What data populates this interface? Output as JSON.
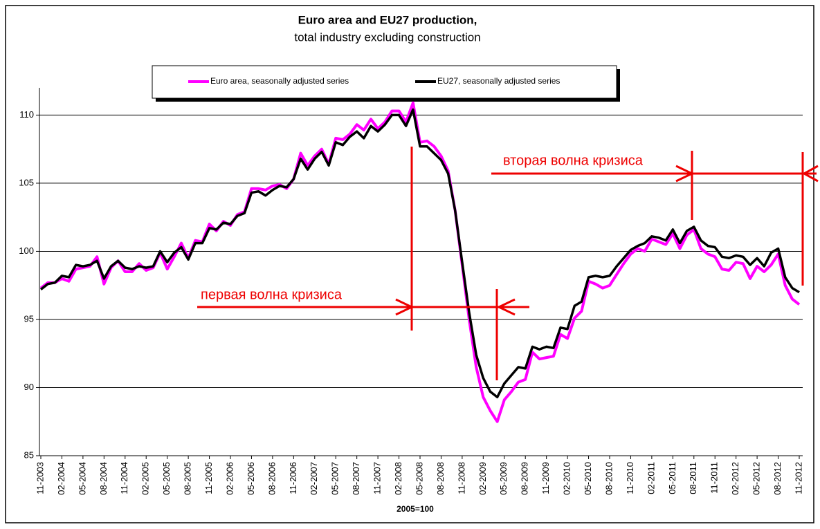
{
  "chart_data": {
    "type": "line",
    "title": "Euro area and EU27 production,",
    "subtitle": "total industry excluding construction",
    "x_label": "2005=100",
    "annotations": [
      "первая волна кризиса",
      "вторая волна кризиса"
    ],
    "categories": [
      "11-2003",
      null,
      null,
      "02-2004",
      null,
      null,
      "05-2004",
      null,
      null,
      "08-2004",
      null,
      null,
      "11-2004",
      null,
      null,
      "02-2005",
      null,
      null,
      "05-2005",
      null,
      null,
      "08-2005",
      null,
      null,
      "11-2005",
      null,
      null,
      "02-2006",
      null,
      null,
      "05-2006",
      null,
      null,
      "08-2006",
      null,
      null,
      "11-2006",
      null,
      null,
      "02-2007",
      null,
      null,
      "05-2007",
      null,
      null,
      "08-2007",
      null,
      null,
      "11-2007",
      null,
      null,
      "02-2008",
      null,
      null,
      "05-2008",
      null,
      null,
      "08-2008",
      null,
      null,
      "11-2008",
      null,
      null,
      "02-2009",
      null,
      null,
      "05-2009",
      null,
      null,
      "08-2009",
      null,
      null,
      "11-2009",
      null,
      null,
      "02-2010",
      null,
      null,
      "05-2010",
      null,
      null,
      "08-2010",
      null,
      null,
      "11-2010",
      null,
      null,
      "02-2011",
      null,
      null,
      "05-2011",
      null,
      null,
      "08-2011",
      null,
      null,
      "11-2011",
      null,
      null,
      "02-2012",
      null,
      null,
      "05-2012",
      null,
      null,
      "08-2012",
      null,
      null,
      "11-2012"
    ],
    "series": [
      {
        "name": "Euro area, seasonally adjusted series",
        "color": "#ff00ff",
        "values": [
          97.3,
          97.7,
          97.7,
          98.0,
          97.8,
          98.7,
          98.8,
          98.9,
          99.6,
          97.6,
          98.8,
          99.3,
          98.5,
          98.5,
          99.1,
          98.6,
          98.8,
          99.9,
          98.7,
          99.6,
          100.6,
          99.5,
          100.8,
          100.7,
          102.0,
          101.5,
          102.2,
          101.9,
          102.7,
          102.9,
          104.6,
          104.6,
          104.5,
          104.8,
          104.9,
          104.6,
          105.3,
          107.2,
          106.3,
          107.0,
          107.5,
          106.4,
          108.3,
          108.2,
          108.6,
          109.3,
          108.9,
          109.7,
          109.0,
          109.5,
          110.3,
          110.3,
          109.5,
          110.9,
          108.0,
          108.1,
          107.7,
          107.0,
          105.9,
          103.0,
          99.0,
          95.0,
          91.5,
          89.3,
          88.3,
          87.5,
          89.1,
          89.7,
          90.4,
          90.6,
          92.6,
          92.1,
          92.2,
          92.3,
          93.9,
          93.6,
          95.1,
          95.6,
          97.8,
          97.6,
          97.3,
          97.5,
          98.3,
          99.1,
          99.8,
          100.2,
          100.0,
          100.9,
          100.7,
          100.5,
          101.3,
          100.2,
          101.2,
          101.6,
          100.2,
          99.8,
          99.6,
          98.7,
          98.6,
          99.2,
          99.1,
          98.0,
          98.9,
          98.5,
          99.0,
          99.8,
          97.5,
          96.5,
          96.1
        ]
      },
      {
        "name": "EU27, seasonally adjusted series",
        "color": "#000000",
        "values": [
          97.2,
          97.6,
          97.7,
          98.2,
          98.1,
          99.0,
          98.9,
          99.0,
          99.3,
          98.0,
          98.9,
          99.3,
          98.8,
          98.7,
          98.9,
          98.8,
          98.9,
          100.0,
          99.2,
          99.9,
          100.3,
          99.4,
          100.6,
          100.6,
          101.7,
          101.6,
          102.1,
          102.0,
          102.6,
          102.8,
          104.3,
          104.4,
          104.1,
          104.5,
          104.8,
          104.7,
          105.3,
          106.8,
          106.0,
          106.8,
          107.3,
          106.3,
          108.0,
          107.8,
          108.4,
          108.8,
          108.3,
          109.2,
          108.8,
          109.3,
          110.0,
          110.0,
          109.2,
          110.4,
          107.7,
          107.7,
          107.2,
          106.7,
          105.7,
          103.0,
          99.2,
          95.5,
          92.4,
          90.7,
          89.7,
          89.3,
          90.3,
          90.9,
          91.5,
          91.4,
          93.0,
          92.8,
          93.0,
          92.9,
          94.4,
          94.3,
          96.0,
          96.3,
          98.1,
          98.2,
          98.1,
          98.2,
          98.9,
          99.5,
          100.1,
          100.4,
          100.6,
          101.1,
          101.0,
          100.8,
          101.6,
          100.6,
          101.5,
          101.8,
          100.8,
          100.4,
          100.3,
          99.6,
          99.5,
          99.7,
          99.6,
          99.0,
          99.5,
          98.9,
          99.9,
          100.2,
          98.1,
          97.3,
          97.0
        ]
      }
    ],
    "ylim": [
      85,
      112
    ],
    "yticks": [
      85,
      90,
      95,
      100,
      105,
      110
    ],
    "grid": true
  }
}
